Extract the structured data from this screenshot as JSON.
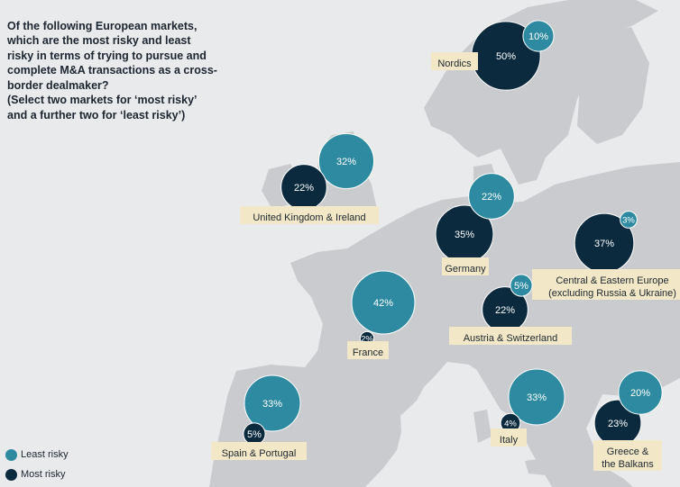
{
  "question": {
    "lines": [
      "Of the following European markets,",
      "which are the most risky and least",
      "risky in terms of trying to pursue and",
      "complete M&A transactions as a cross-",
      "border dealmaker?",
      "(Select two markets for ‘most risky’",
      "and a further two for ‘least risky’)"
    ]
  },
  "colors": {
    "least_risky": "#2e8aa0",
    "most_risky": "#0b2a3e",
    "label_box": "#f2e8c7",
    "land": "#c9cbce",
    "sea": "#e9eaeb"
  },
  "legend": [
    {
      "key": "least",
      "label": "Least risky",
      "color": "#2e8aa0"
    },
    {
      "key": "most",
      "label": "Most risky",
      "color": "#0b2a3e"
    }
  ],
  "chart_data": {
    "type": "bubble-map",
    "series": [
      {
        "name": "Least risky",
        "key": "least"
      },
      {
        "name": "Most risky",
        "key": "most"
      }
    ],
    "markets": [
      {
        "id": "nordics",
        "label": [
          "Nordics"
        ],
        "least": 10,
        "most": 50
      },
      {
        "id": "uk",
        "label": [
          "United Kingdom & Ireland"
        ],
        "least": 32,
        "most": 22
      },
      {
        "id": "germany",
        "label": [
          "Germany"
        ],
        "least": 22,
        "most": 35
      },
      {
        "id": "cee",
        "label": [
          "Central & Eastern Europe",
          "(excluding Russia & Ukraine)"
        ],
        "least": 3,
        "most": 37
      },
      {
        "id": "france",
        "label": [
          "France"
        ],
        "least": 42,
        "most": 2
      },
      {
        "id": "austria",
        "label": [
          "Austria & Switzerland"
        ],
        "least": 5,
        "most": 22
      },
      {
        "id": "spain",
        "label": [
          "Spain & Portugal"
        ],
        "least": 33,
        "most": 5
      },
      {
        "id": "italy",
        "label": [
          "Italy"
        ],
        "least": 33,
        "most": 4
      },
      {
        "id": "greece",
        "label": [
          "Greece &",
          "the Balkans"
        ],
        "least": 20,
        "most": 23
      }
    ],
    "unit": "%"
  }
}
